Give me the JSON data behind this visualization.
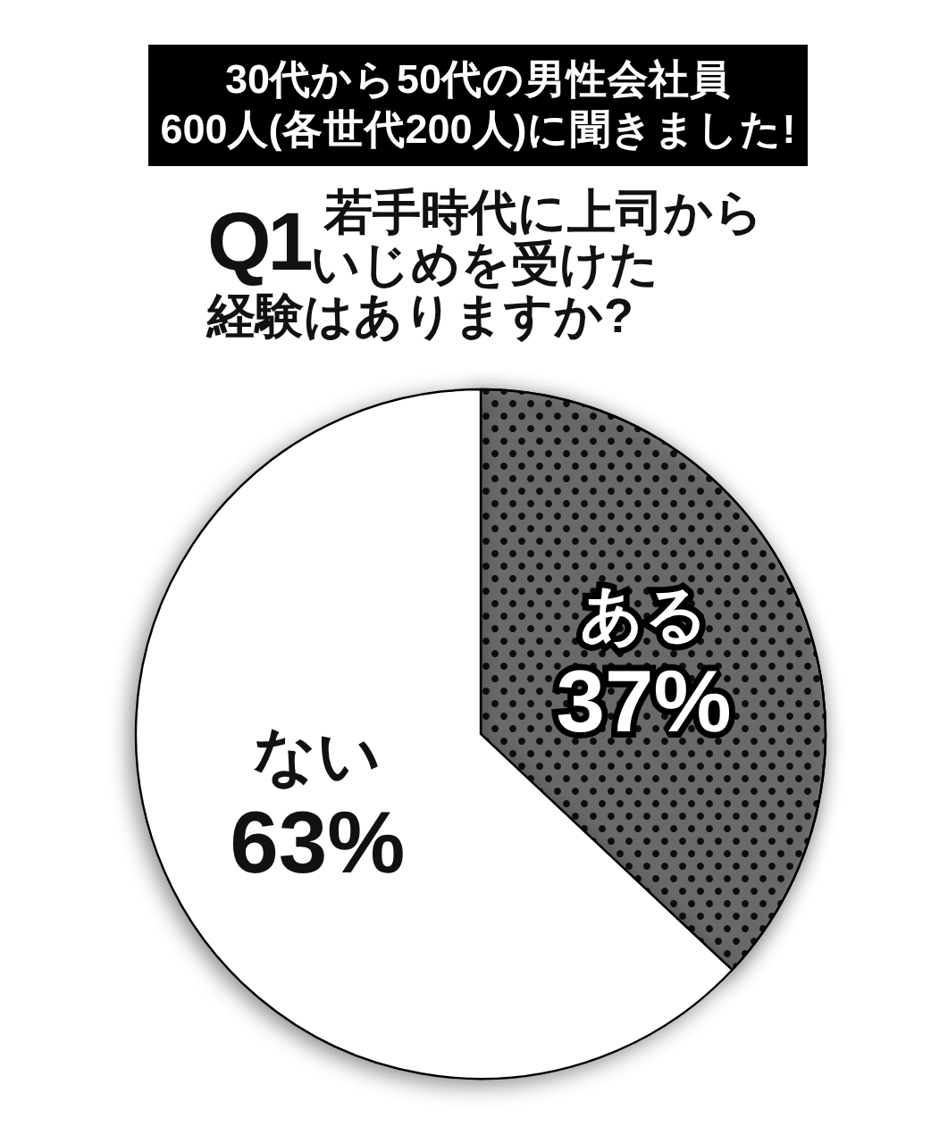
{
  "chart_data": {
    "type": "pie",
    "title": "30代から50代の男性会社員\n600人(各世代200人)に聞きました!",
    "subtitle": "Q1 若手時代に上司からいじめを受けた経験はありますか?",
    "categories": [
      "ある",
      "ない"
    ],
    "values": [
      37,
      63
    ],
    "colors": [
      "#808080",
      "#ffffff"
    ],
    "value_labels": [
      "37%",
      "63%"
    ]
  }
}
